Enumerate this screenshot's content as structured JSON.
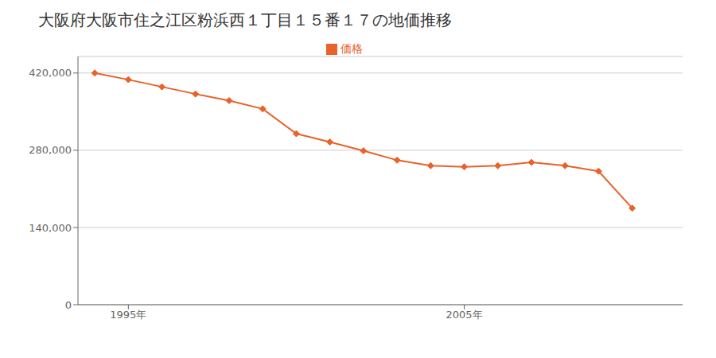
{
  "chart_data": {
    "type": "line",
    "title": "大阪府大阪市住之江区粉浜西１丁目１５番１７の地価推移",
    "x": [
      1994,
      1995,
      1996,
      1997,
      1998,
      1999,
      2000,
      2001,
      2002,
      2003,
      2004,
      2005,
      2006,
      2007,
      2008,
      2009,
      2010
    ],
    "series": [
      {
        "name": "価格",
        "color": "#e8622a",
        "marker": "diamond",
        "values": [
          420000,
          408000,
          395000,
          382000,
          370000,
          355000,
          310000,
          295000,
          279000,
          262000,
          252000,
          250000,
          252000,
          258000,
          252000,
          242000,
          175000
        ]
      }
    ],
    "xlim": [
      1993.5,
      2011.5
    ],
    "xticks": [
      {
        "value": 1995,
        "label": "1995年"
      },
      {
        "value": 2005,
        "label": "2005年"
      }
    ],
    "ylim": [
      0,
      450000
    ],
    "yticks": [
      0,
      {
        "value": 140000,
        "label": "140,000"
      },
      {
        "value": 280000,
        "label": "280,000"
      },
      {
        "value": 420000,
        "label": "420,000"
      }
    ],
    "grid": "y",
    "legend": "top"
  }
}
